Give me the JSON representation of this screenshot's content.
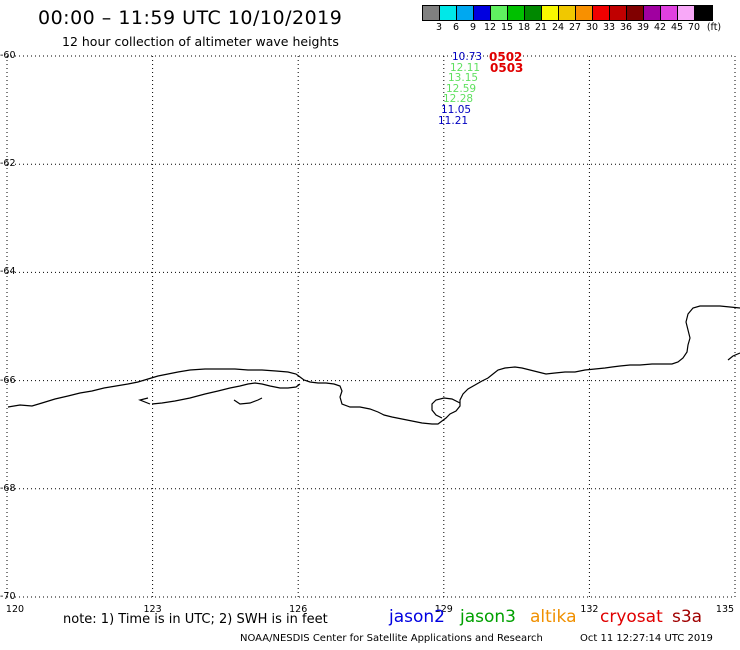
{
  "header": {
    "title": "00:00 – 11:59 UTC 10/10/2019",
    "subtitle": "12 hour collection of altimeter wave heights"
  },
  "legend": {
    "unit": "(ft)",
    "bins": [
      {
        "label": "3",
        "color": "#808080"
      },
      {
        "label": "6",
        "color": "#00e8e8"
      },
      {
        "label": "9",
        "color": "#00a8f0"
      },
      {
        "label": "12",
        "color": "#0000e0"
      },
      {
        "label": "15",
        "color": "#60f060"
      },
      {
        "label": "18",
        "color": "#00c000"
      },
      {
        "label": "21",
        "color": "#008800"
      },
      {
        "label": "24",
        "color": "#f8f800"
      },
      {
        "label": "27",
        "color": "#f0c800"
      },
      {
        "label": "30",
        "color": "#f89000"
      },
      {
        "label": "33",
        "color": "#f00000"
      },
      {
        "label": "36",
        "color": "#c00000"
      },
      {
        "label": "39",
        "color": "#800000"
      },
      {
        "label": "42",
        "color": "#a000a0"
      },
      {
        "label": "45",
        "color": "#e040e0"
      },
      {
        "label": "70",
        "color": "#f8a8f8"
      },
      {
        "label": "",
        "color": "#000000"
      }
    ]
  },
  "map": {
    "lon_range": [
      120,
      135
    ],
    "lat_range": [
      -70,
      -60
    ],
    "lon_ticks": [
      "120",
      "123",
      "126",
      "129",
      "132",
      "135"
    ],
    "lat_ticks": [
      "-60",
      "-62",
      "-64",
      "-66",
      "-68",
      "-70"
    ],
    "grid": "dotted",
    "observations": [
      {
        "value": "10.73",
        "color": "#0000c0"
      },
      {
        "value": "12.11",
        "color": "#60e060"
      },
      {
        "value": "13.15",
        "color": "#60e060"
      },
      {
        "value": "12.59",
        "color": "#60e060"
      },
      {
        "value": "12.28",
        "color": "#60e060"
      },
      {
        "value": "11.05",
        "color": "#0000c0"
      },
      {
        "value": "11.21",
        "color": "#0000c0"
      }
    ],
    "passes": [
      {
        "label": "0502",
        "color": "#e00000"
      },
      {
        "label": "0503",
        "color": "#e00000"
      }
    ]
  },
  "footer": {
    "note": "note: 1) Time is in UTC; 2) SWH is in feet",
    "satellites": [
      {
        "name": "jason2",
        "color": "#0000e0"
      },
      {
        "name": "jason3",
        "color": "#00a000"
      },
      {
        "name": "altika",
        "color": "#f09000"
      },
      {
        "name": "cryosat",
        "color": "#e00000"
      },
      {
        "name": "s3a",
        "color": "#a00000"
      }
    ],
    "credit": "NOAA/NESDIS Center for Satellite Applications and Research",
    "timestamp": "Oct 11 12:27:14 UTC 2019"
  }
}
